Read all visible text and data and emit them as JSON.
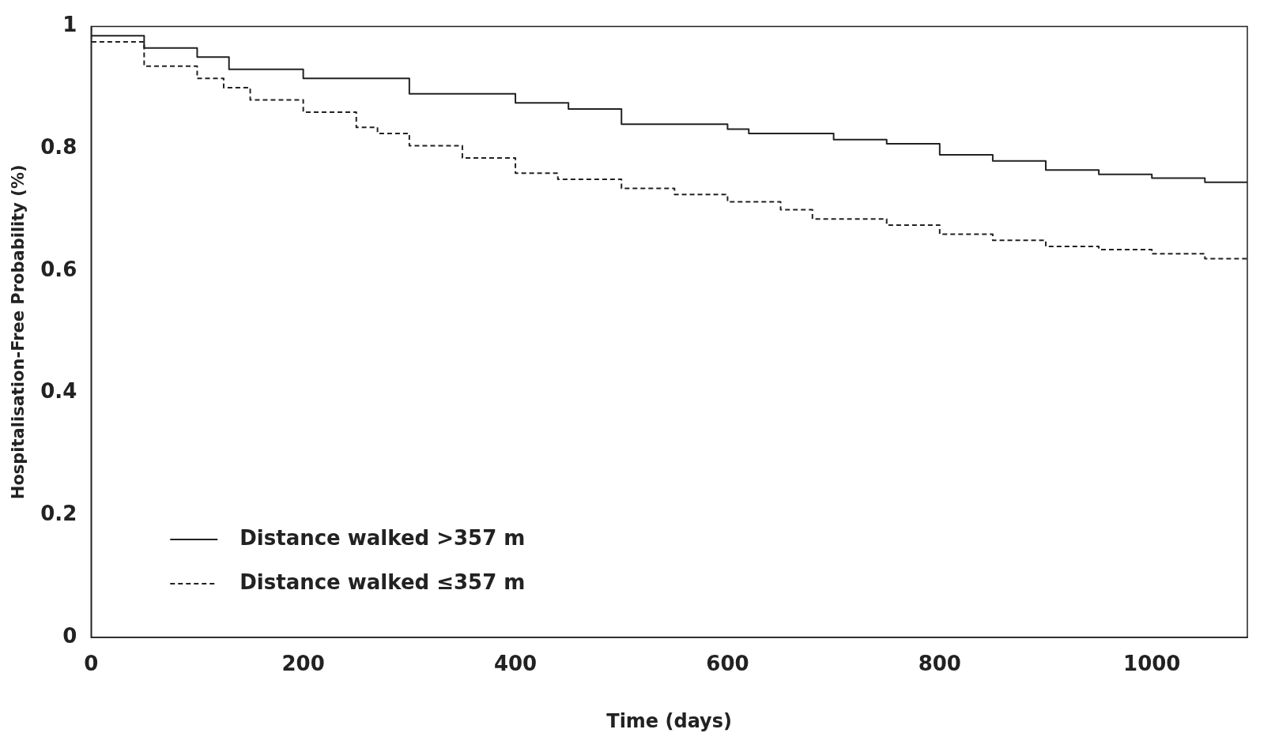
{
  "chart_data": {
    "type": "step",
    "xlabel": "Time (days)",
    "ylabel": "Hospitalisation-Free Probability (%)",
    "xlim": [
      0,
      1090
    ],
    "xticks": [
      0,
      200,
      400,
      600,
      800,
      1000
    ],
    "ylim": [
      0,
      1
    ],
    "yticks": [
      0,
      0.2,
      0.4,
      0.6,
      0.8,
      1
    ],
    "grid": false,
    "legend": "bottom left",
    "marker": "none",
    "series": [
      {
        "name": "Distance walked >357 m",
        "color": "#222222",
        "line_style": "solid",
        "x": [
          0,
          50,
          100,
          130,
          200,
          300,
          400,
          450,
          500,
          600,
          620,
          700,
          750,
          800,
          850,
          900,
          950,
          1000,
          1050,
          1090
        ],
        "values": [
          1,
          0.985,
          0.965,
          0.95,
          0.93,
          0.915,
          0.89,
          0.875,
          0.865,
          0.84,
          0.832,
          0.825,
          0.815,
          0.808,
          0.79,
          0.78,
          0.765,
          0.758,
          0.752,
          0.745
        ]
      },
      {
        "name": "Distance walked ≤357 m",
        "color": "#222222",
        "line_style": "dashed",
        "x": [
          0,
          50,
          100,
          125,
          150,
          200,
          250,
          270,
          300,
          350,
          400,
          440,
          500,
          550,
          600,
          650,
          680,
          750,
          800,
          850,
          900,
          950,
          1000,
          1050,
          1090
        ],
        "values": [
          1,
          0.975,
          0.935,
          0.915,
          0.9,
          0.88,
          0.86,
          0.835,
          0.825,
          0.805,
          0.785,
          0.76,
          0.75,
          0.735,
          0.725,
          0.713,
          0.7,
          0.685,
          0.675,
          0.66,
          0.65,
          0.64,
          0.635,
          0.628,
          0.62
        ]
      }
    ]
  }
}
